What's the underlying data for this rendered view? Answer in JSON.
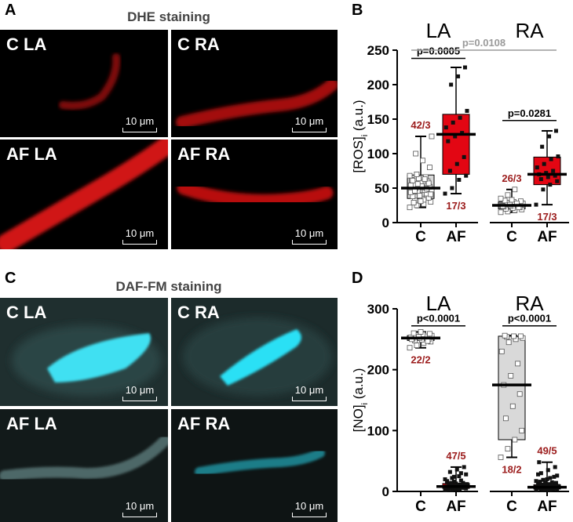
{
  "colors": {
    "red_group": "#e30613",
    "gray_group": "#d9d9d9",
    "label_red": "#9b1b1b",
    "p_gray": "#9a9a9a",
    "cyan_cell": "#39d7ee",
    "red_cell": "#cc1010"
  },
  "panels": {
    "A": {
      "letter": "A",
      "title": "DHE staining",
      "images": [
        {
          "label": "C LA",
          "scale": "10 μm"
        },
        {
          "label": "C RA",
          "scale": "10 μm"
        },
        {
          "label": "AF LA",
          "scale": "10 μm"
        },
        {
          "label": "AF RA",
          "scale": "10 μm"
        }
      ]
    },
    "C": {
      "letter": "C",
      "title": "DAF-FM staining",
      "images": [
        {
          "label": "C LA",
          "scale": "10 μm"
        },
        {
          "label": "C RA",
          "scale": "10 μm"
        },
        {
          "label": "AF LA",
          "scale": "10 μm"
        },
        {
          "label": "AF RA",
          "scale": "10 μm"
        }
      ]
    },
    "B": {
      "letter": "B"
    },
    "D": {
      "letter": "D"
    }
  },
  "chart_data": [
    {
      "id": "B",
      "type": "box",
      "ylabel_main": "[ROS]",
      "ylabel_sub": "i",
      "ylabel_tail": " (a.u.)",
      "ylim": [
        0,
        250
      ],
      "yticks": [
        "0",
        "50",
        "100",
        "150",
        "200",
        "250"
      ],
      "group_titles": [
        "LA",
        "RA"
      ],
      "categories": [
        "C",
        "AF",
        "C",
        "AF"
      ],
      "boxes": [
        {
          "group": "LA",
          "cond": "C",
          "color": "gray",
          "min": 22,
          "q1": 35,
          "median": 50,
          "q3": 69,
          "max": 125,
          "n_label": "42/3",
          "label_pos": "above",
          "points": [
            22,
            25,
            27,
            30,
            32,
            35,
            36,
            38,
            40,
            42,
            44,
            45,
            47,
            48,
            50,
            51,
            52,
            55,
            58,
            60,
            62,
            64,
            66,
            68,
            70,
            33,
            41,
            46,
            53,
            57,
            61,
            39,
            49,
            54,
            56,
            63,
            125,
            100,
            90,
            80,
            29,
            31
          ]
        },
        {
          "group": "LA",
          "cond": "AF",
          "color": "red",
          "min": 42,
          "q1": 70,
          "median": 128,
          "q3": 157,
          "max": 225,
          "n_label": "17/3",
          "label_pos": "below",
          "points": [
            42,
            50,
            62,
            68,
            75,
            85,
            95,
            118,
            125,
            130,
            138,
            145,
            152,
            162,
            200,
            212,
            225
          ]
        },
        {
          "group": "RA",
          "cond": "C",
          "color": "gray",
          "min": 15,
          "q1": 20,
          "median": 25,
          "q3": 30,
          "max": 48,
          "n_label": "26/3",
          "label_pos": "above",
          "points": [
            15,
            16,
            18,
            19,
            20,
            21,
            22,
            23,
            24,
            25,
            25,
            26,
            27,
            28,
            29,
            30,
            31,
            32,
            33,
            22,
            24,
            26,
            28,
            35,
            40,
            48
          ]
        },
        {
          "group": "RA",
          "cond": "AF",
          "color": "red",
          "min": 26,
          "q1": 55,
          "median": 70,
          "q3": 95,
          "max": 133,
          "n_label": "17/3",
          "label_pos": "below",
          "points": [
            26,
            48,
            55,
            60,
            63,
            66,
            68,
            70,
            72,
            75,
            80,
            85,
            92,
            96,
            110,
            125,
            133
          ]
        }
      ],
      "comparisons": [
        {
          "from": 0,
          "to": 1,
          "p": "p=0.0005",
          "y": 238,
          "color": "black"
        },
        {
          "from": 0,
          "to": 3,
          "p": "p=0.0108",
          "y": 250,
          "color": "gray"
        },
        {
          "from": 2,
          "to": 3,
          "p": "p=0.0281",
          "y": 148,
          "color": "black"
        }
      ]
    },
    {
      "id": "D",
      "type": "box",
      "ylabel_main": "[NO]",
      "ylabel_sub": "i",
      "ylabel_tail": " (a.u.)",
      "ylim": [
        0,
        300
      ],
      "yticks": [
        "0",
        "100",
        "200",
        "300"
      ],
      "group_titles": [
        "LA",
        "RA"
      ],
      "categories": [
        "C",
        "AF",
        "C",
        "AF"
      ],
      "boxes": [
        {
          "group": "LA",
          "cond": "C",
          "color": "gray",
          "min": 236,
          "q1": 248,
          "median": 252,
          "q3": 256,
          "max": 262,
          "n_label": "22/2",
          "label_pos": "below",
          "points": [
            236,
            240,
            244,
            246,
            248,
            249,
            250,
            251,
            252,
            252,
            253,
            254,
            255,
            256,
            257,
            258,
            259,
            260,
            262,
            247,
            250,
            254
          ]
        },
        {
          "group": "LA",
          "cond": "AF",
          "color": "red",
          "min": 2,
          "q1": 5,
          "median": 8,
          "q3": 13,
          "max": 40,
          "n_label": "47/5",
          "label_pos": "above",
          "points": [
            2,
            3,
            4,
            5,
            5,
            6,
            6,
            7,
            7,
            8,
            8,
            8,
            9,
            9,
            10,
            10,
            11,
            12,
            13,
            14,
            15,
            16,
            18,
            20,
            22,
            25,
            28,
            32,
            36,
            40,
            3,
            4,
            6,
            7,
            9,
            11,
            12,
            14,
            5,
            6,
            8,
            10,
            13,
            17,
            24,
            30,
            7
          ]
        },
        {
          "group": "RA",
          "cond": "C",
          "color": "gray",
          "min": 56,
          "q1": 85,
          "median": 175,
          "q3": 255,
          "max": 256,
          "n_label": "18/2",
          "label_pos": "below",
          "points": [
            56,
            70,
            85,
            100,
            120,
            140,
            160,
            175,
            190,
            210,
            230,
            245,
            250,
            252,
            254,
            255,
            255,
            256
          ]
        },
        {
          "group": "RA",
          "cond": "AF",
          "color": "red",
          "min": 2,
          "q1": 4,
          "median": 7,
          "q3": 11,
          "max": 48,
          "n_label": "49/5",
          "label_pos": "above",
          "points": [
            2,
            3,
            3,
            4,
            4,
            5,
            5,
            6,
            6,
            7,
            7,
            7,
            8,
            8,
            9,
            9,
            10,
            10,
            11,
            12,
            13,
            14,
            15,
            17,
            19,
            22,
            26,
            30,
            35,
            40,
            48,
            3,
            4,
            5,
            6,
            8,
            9,
            11,
            12,
            14,
            16,
            20,
            24,
            28,
            5,
            6,
            7,
            8,
            10
          ]
        }
      ],
      "comparisons": [
        {
          "from": 0,
          "to": 1,
          "p": "p<0.0001",
          "y": 272,
          "color": "black"
        },
        {
          "from": 2,
          "to": 3,
          "p": "p<0.0001",
          "y": 272,
          "color": "black"
        }
      ]
    }
  ]
}
